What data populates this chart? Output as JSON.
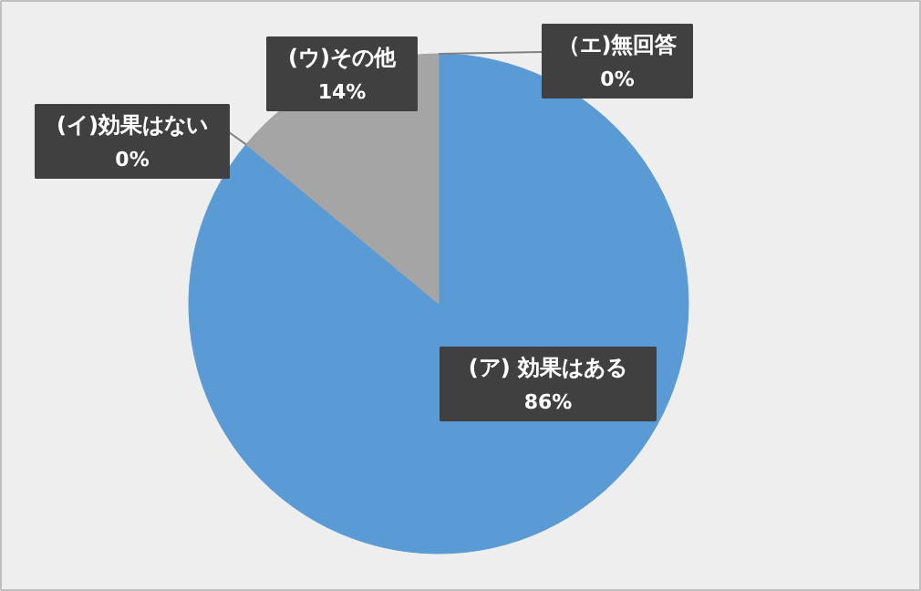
{
  "chart_data": {
    "type": "pie",
    "categories": [
      "(ア) 効果はある",
      "(イ)効果はない",
      "(ウ)その他",
      "（エ)無回答"
    ],
    "values": [
      86,
      0,
      14,
      0
    ],
    "colors": [
      "#5b9bd5",
      "#ed7d31",
      "#a5a5a5",
      "#ffc000"
    ],
    "value_labels": [
      "86%",
      "0%",
      "14%",
      "0%"
    ]
  }
}
